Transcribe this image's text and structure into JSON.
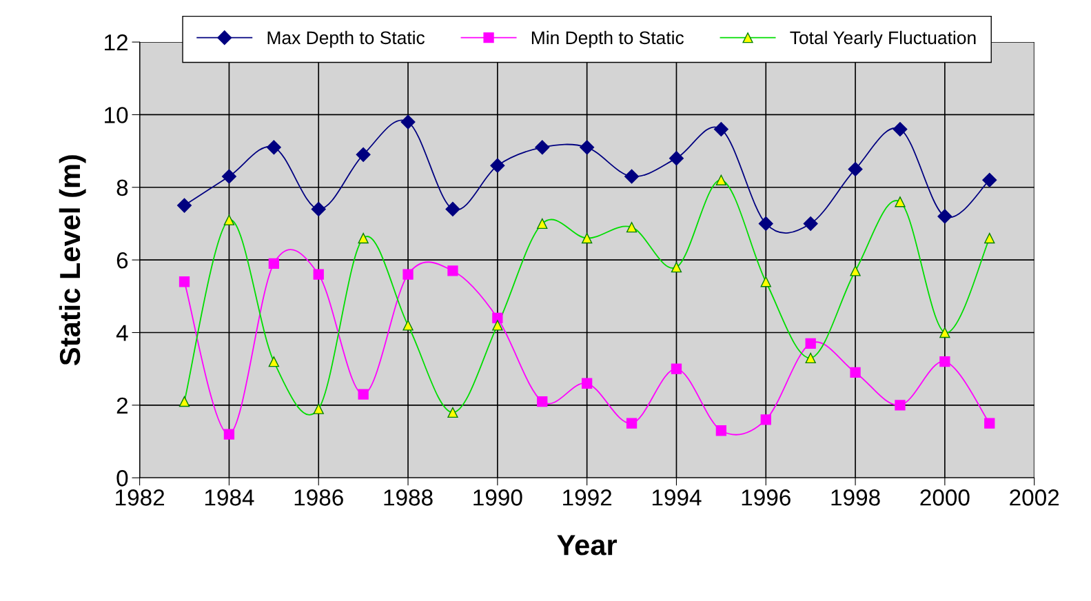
{
  "chart_data": {
    "type": "line",
    "xlabel": "Year",
    "ylabel": "Static Level (m)",
    "x": [
      1983,
      1984,
      1985,
      1986,
      1987,
      1988,
      1989,
      1990,
      1991,
      1992,
      1993,
      1994,
      1995,
      1996,
      1997,
      1998,
      1999,
      2000,
      2001
    ],
    "series": [
      {
        "name": "Max Depth to Static",
        "color": "#000080",
        "marker": "diamond",
        "values": [
          7.5,
          8.3,
          9.1,
          7.4,
          8.9,
          9.8,
          7.4,
          8.6,
          9.1,
          9.1,
          8.3,
          8.8,
          9.6,
          7.0,
          7.0,
          8.5,
          9.6,
          7.2,
          8.2
        ]
      },
      {
        "name": "Min Depth to Static",
        "color": "#ff00ff",
        "marker": "square",
        "values": [
          5.4,
          1.2,
          5.9,
          5.6,
          2.3,
          5.6,
          5.7,
          4.4,
          2.1,
          2.6,
          1.5,
          3.0,
          1.3,
          1.6,
          3.7,
          2.9,
          2.0,
          3.2,
          1.5
        ]
      },
      {
        "name": "Total Yearly Fluctuation",
        "color": "#00dd00",
        "marker": "triangle",
        "values": [
          2.1,
          7.1,
          3.2,
          1.9,
          6.6,
          4.2,
          1.8,
          4.2,
          7.0,
          6.6,
          6.9,
          5.8,
          8.2,
          5.4,
          3.3,
          5.7,
          7.6,
          4.0,
          6.6
        ]
      }
    ],
    "xlim": [
      1982,
      2002
    ],
    "xticks": [
      1982,
      1984,
      1986,
      1988,
      1990,
      1992,
      1994,
      1996,
      1998,
      2000,
      2002
    ],
    "ylim": [
      0,
      12
    ],
    "yticks": [
      0,
      2,
      4,
      6,
      8,
      10,
      12
    ],
    "grid": true,
    "legend": "top",
    "line_style": "solid"
  }
}
